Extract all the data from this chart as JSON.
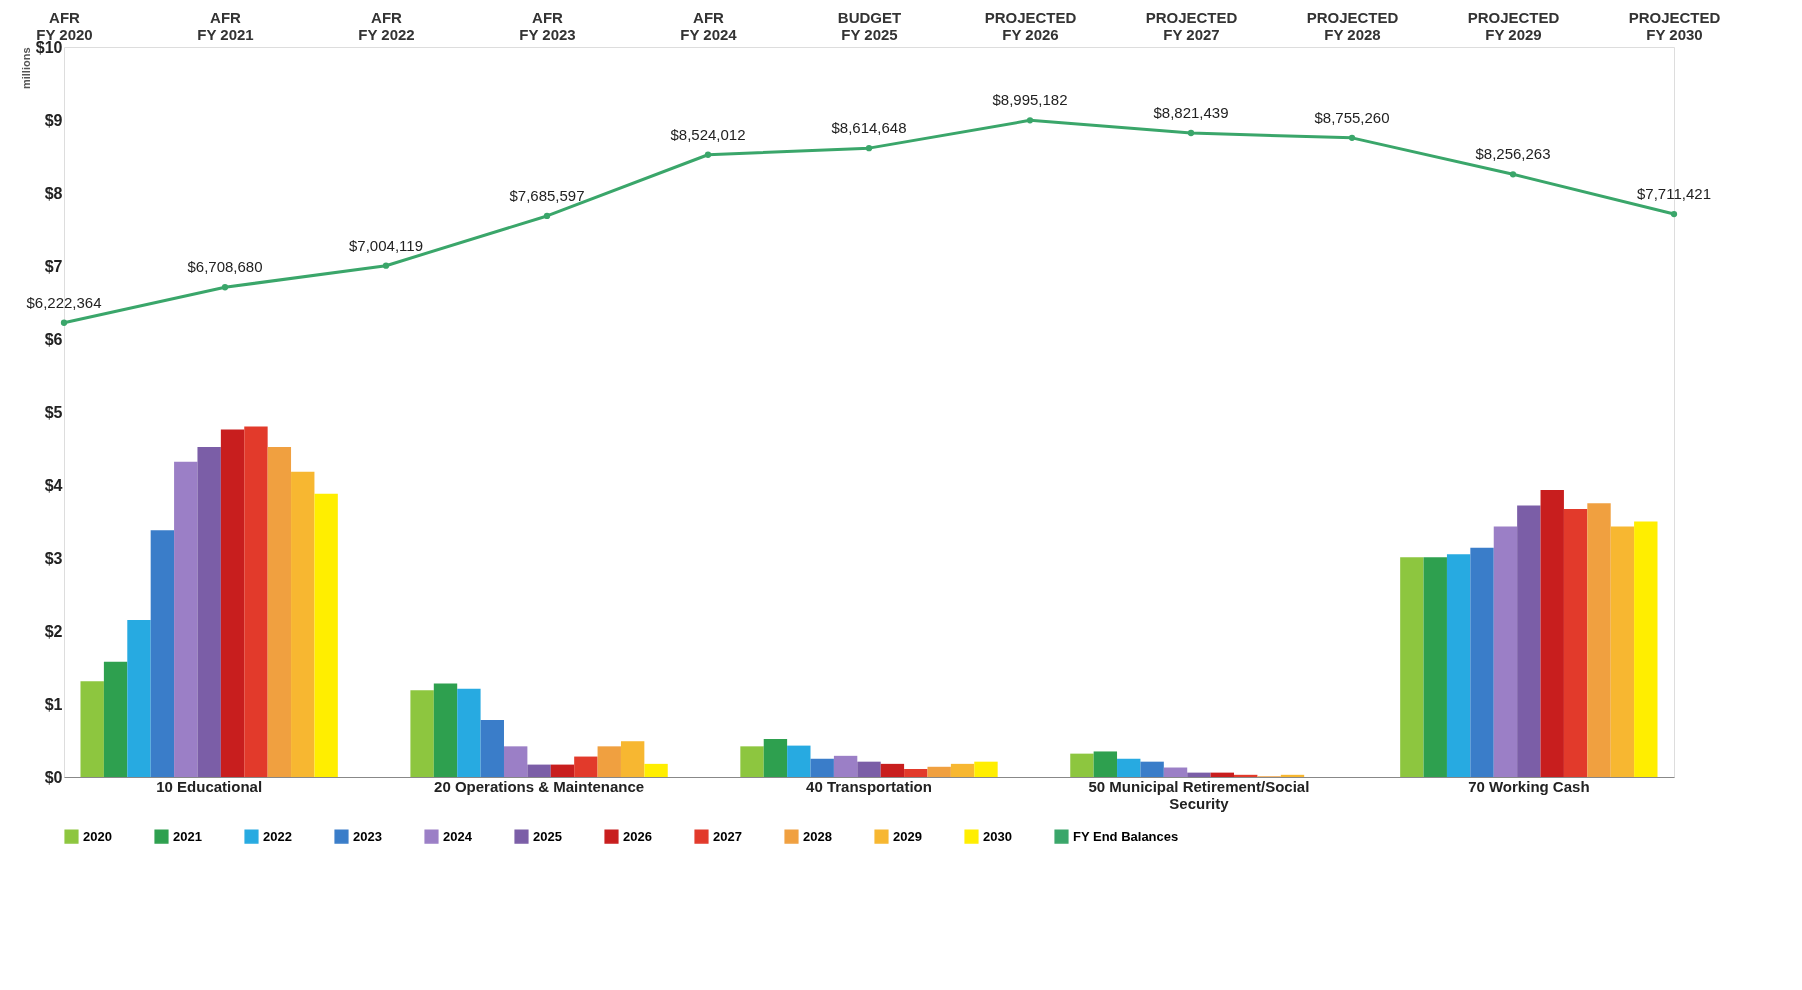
{
  "chart_data": [
    {
      "type": "bar",
      "ylabel": "millions",
      "categories": [
        "10 Educational",
        "20 Operations & Maintenance",
        "40 Transportation",
        "50 Municipal Retirement/Social\nSecurity",
        "70 Working Cash"
      ],
      "ylim": [
        0,
        10
      ],
      "yticks": [
        {
          "value": 0,
          "label": "$0"
        },
        {
          "value": 1,
          "label": "$1"
        },
        {
          "value": 2,
          "label": "$2"
        },
        {
          "value": 3,
          "label": "$3"
        },
        {
          "value": 4,
          "label": "$4"
        },
        {
          "value": 5,
          "label": "$5"
        },
        {
          "value": 6,
          "label": "$6"
        },
        {
          "value": 7,
          "label": "$7"
        },
        {
          "value": 8,
          "label": "$8"
        },
        {
          "value": 9,
          "label": "$9"
        },
        {
          "value": 10,
          "label": "$10"
        }
      ],
      "grid": false,
      "legend": "bottom",
      "series": [
        {
          "name": "2020",
          "color": "#8dc63f",
          "values": [
            1.31,
            1.19,
            0.42,
            0.32,
            3.01
          ]
        },
        {
          "name": "2021",
          "color": "#2ea04f",
          "values": [
            1.58,
            1.28,
            0.52,
            0.35,
            3.01
          ]
        },
        {
          "name": "2022",
          "color": "#27aae1",
          "values": [
            2.15,
            1.21,
            0.43,
            0.25,
            3.05
          ]
        },
        {
          "name": "2023",
          "color": "#3a7dc9",
          "values": [
            3.38,
            0.78,
            0.25,
            0.21,
            3.14
          ]
        },
        {
          "name": "2024",
          "color": "#9b7fc6",
          "values": [
            4.32,
            0.42,
            0.29,
            0.13,
            3.43
          ]
        },
        {
          "name": "2025",
          "color": "#7b5ea7",
          "values": [
            4.52,
            0.17,
            0.21,
            0.06,
            3.72
          ]
        },
        {
          "name": "2026",
          "color": "#c81e1e",
          "values": [
            4.76,
            0.17,
            0.18,
            0.06,
            3.93
          ]
        },
        {
          "name": "2027",
          "color": "#e23a2b",
          "values": [
            4.8,
            0.28,
            0.11,
            0.03,
            3.67
          ]
        },
        {
          "name": "2028",
          "color": "#f0a040",
          "values": [
            4.52,
            0.42,
            0.14,
            0.01,
            3.75
          ]
        },
        {
          "name": "2029",
          "color": "#f7b731",
          "values": [
            4.18,
            0.49,
            0.18,
            0.03,
            3.43
          ]
        },
        {
          "name": "2030",
          "color": "#ffee00",
          "values": [
            3.88,
            0.18,
            0.21,
            0.0,
            3.5
          ]
        }
      ]
    },
    {
      "type": "line",
      "marker": "circle",
      "tick_labels": "x",
      "categories": [
        "AFR FY 2020",
        "AFR FY 2021",
        "AFR FY 2022",
        "AFR FY 2023",
        "AFR FY 2024",
        "BUDGET FY 2025",
        "PROJECTED FY 2026",
        "PROJECTED FY 2027",
        "PROJECTED FY 2028",
        "PROJECTED FY 2029",
        "PROJECTED FY 2030"
      ],
      "ylim": [
        0,
        10000000
      ],
      "series": [
        {
          "name": "FY End Balances",
          "color": "#3aa66a",
          "values": [
            6222364,
            6708680,
            7004119,
            7685597,
            8524012,
            8614648,
            8995182,
            8821439,
            8755260,
            8256263,
            7711421
          ],
          "value_labels": [
            "$6,222,364",
            "$6,708,680",
            "$7,004,119",
            "$7,685,597",
            "$8,524,012",
            "$8,614,648",
            "$8,995,182",
            "$8,821,439",
            "$8,755,260",
            "$8,256,263",
            "$7,711,421"
          ]
        }
      ]
    }
  ]
}
